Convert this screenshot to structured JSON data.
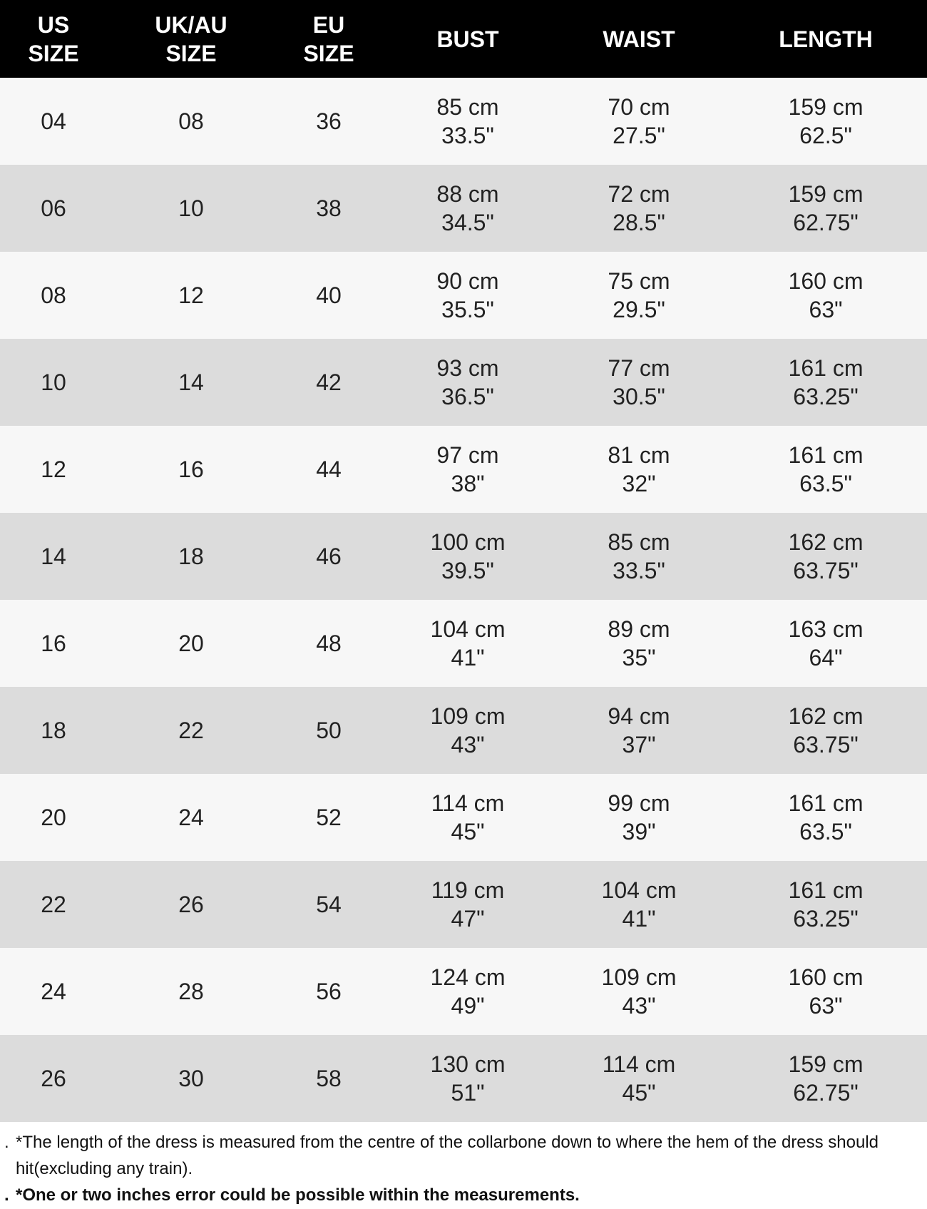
{
  "headers": [
    "US SIZE",
    "UK/AU SIZE",
    "EU SIZE",
    "BUST",
    "WAIST",
    "LENGTH"
  ],
  "header_lines": [
    [
      "US",
      "SIZE"
    ],
    [
      "UK/AU",
      "SIZE"
    ],
    [
      "EU",
      "SIZE"
    ],
    [
      "BUST"
    ],
    [
      "WAIST"
    ],
    [
      "LENGTH"
    ]
  ],
  "rows": [
    {
      "us": "04",
      "uk": "08",
      "eu": "36",
      "bust_cm": "85 cm",
      "bust_in": "33.5\"",
      "waist_cm": "70 cm",
      "waist_in": "27.5\"",
      "length_cm": "159 cm",
      "length_in": "62.5\""
    },
    {
      "us": "06",
      "uk": "10",
      "eu": "38",
      "bust_cm": "88 cm",
      "bust_in": "34.5\"",
      "waist_cm": "72 cm",
      "waist_in": "28.5\"",
      "length_cm": "159 cm",
      "length_in": "62.75\""
    },
    {
      "us": "08",
      "uk": "12",
      "eu": "40",
      "bust_cm": "90 cm",
      "bust_in": "35.5\"",
      "waist_cm": "75 cm",
      "waist_in": "29.5\"",
      "length_cm": "160 cm",
      "length_in": "63\""
    },
    {
      "us": "10",
      "uk": "14",
      "eu": "42",
      "bust_cm": "93 cm",
      "bust_in": "36.5\"",
      "waist_cm": "77 cm",
      "waist_in": "30.5\"",
      "length_cm": "161 cm",
      "length_in": "63.25\""
    },
    {
      "us": "12",
      "uk": "16",
      "eu": "44",
      "bust_cm": "97 cm",
      "bust_in": "38\"",
      "waist_cm": "81 cm",
      "waist_in": "32\"",
      "length_cm": "161 cm",
      "length_in": "63.5\""
    },
    {
      "us": "14",
      "uk": "18",
      "eu": "46",
      "bust_cm": "100 cm",
      "bust_in": "39.5\"",
      "waist_cm": "85 cm",
      "waist_in": "33.5\"",
      "length_cm": "162 cm",
      "length_in": "63.75\""
    },
    {
      "us": "16",
      "uk": "20",
      "eu": "48",
      "bust_cm": "104 cm",
      "bust_in": "41\"",
      "waist_cm": "89 cm",
      "waist_in": "35\"",
      "length_cm": "163 cm",
      "length_in": "64\""
    },
    {
      "us": "18",
      "uk": "22",
      "eu": "50",
      "bust_cm": "109 cm",
      "bust_in": "43\"",
      "waist_cm": "94 cm",
      "waist_in": "37\"",
      "length_cm": "162 cm",
      "length_in": "63.75\""
    },
    {
      "us": "20",
      "uk": "24",
      "eu": "52",
      "bust_cm": "114 cm",
      "bust_in": "45\"",
      "waist_cm": "99 cm",
      "waist_in": "39\"",
      "length_cm": "161 cm",
      "length_in": "63.5\""
    },
    {
      "us": "22",
      "uk": "26",
      "eu": "54",
      "bust_cm": "119 cm",
      "bust_in": "47\"",
      "waist_cm": "104 cm",
      "waist_in": "41\"",
      "length_cm": "161 cm",
      "length_in": "63.25\""
    },
    {
      "us": "24",
      "uk": "28",
      "eu": "56",
      "bust_cm": "124 cm",
      "bust_in": "49\"",
      "waist_cm": "109 cm",
      "waist_in": "43\"",
      "length_cm": "160 cm",
      "length_in": "63\""
    },
    {
      "us": "26",
      "uk": "30",
      "eu": "58",
      "bust_cm": "130 cm",
      "bust_in": "51\"",
      "waist_cm": "114 cm",
      "waist_in": "45\"",
      "length_cm": "159 cm",
      "length_in": "62.75\""
    }
  ],
  "notes": [
    {
      "bullet": ".",
      "text": "*The length of the dress is measured from the centre of the collarbone down to where the hem of the dress should hit(excluding any train).",
      "bold": false
    },
    {
      "bullet": ".",
      "text": "*One or two inches error could be possible within the measurements.",
      "bold": true
    }
  ],
  "colors": {
    "header_bg": "#000000",
    "row_light": "#f7f7f7",
    "row_dark": "#dcdcdc"
  }
}
